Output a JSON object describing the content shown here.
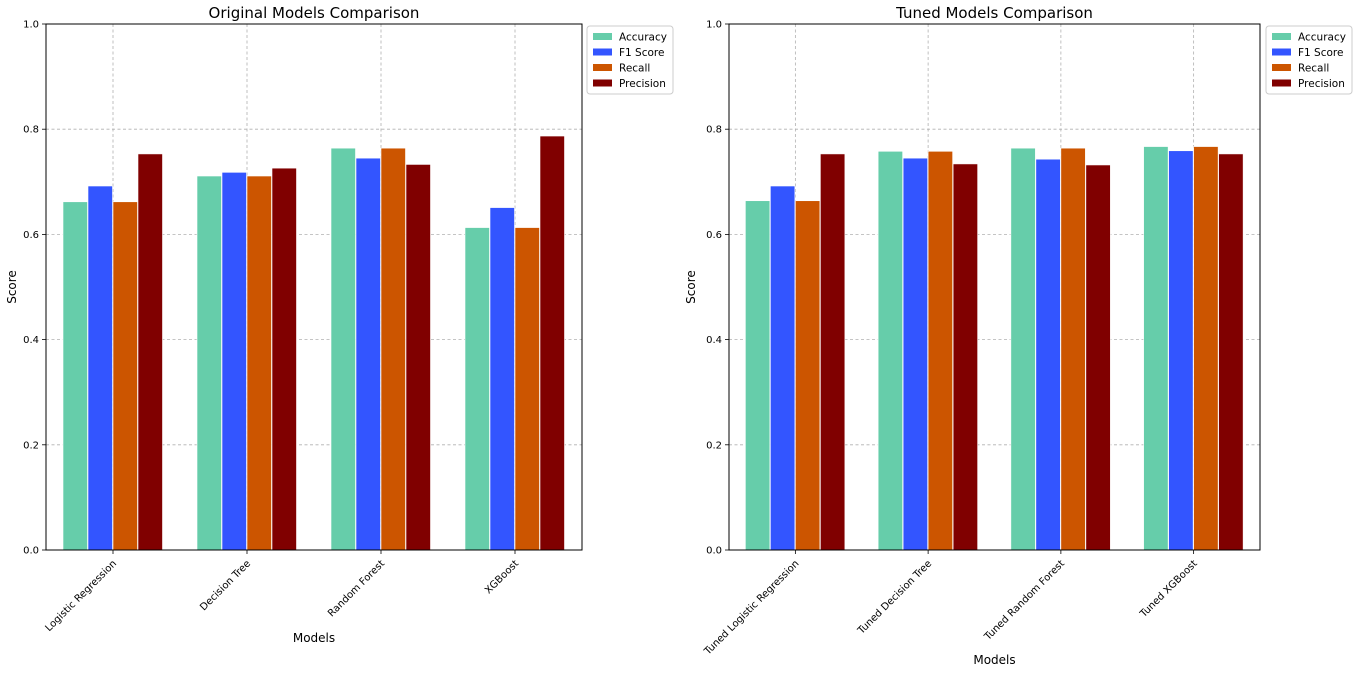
{
  "chart_data": [
    {
      "type": "bar",
      "title": "Original Models Comparison",
      "xlabel": "Models",
      "ylabel": "Score",
      "ylim": [
        0,
        1
      ],
      "yticks": [
        "0.0",
        "0.2",
        "0.4",
        "0.6",
        "0.8",
        "1.0"
      ],
      "grid": true,
      "legend_position": "outside-top-right",
      "categories": [
        "Logistic Regression",
        "Decision Tree",
        "Random Forest",
        "XGBoost"
      ],
      "series": [
        {
          "name": "Accuracy",
          "color": "#66cdaa",
          "values": [
            0.662,
            0.711,
            0.764,
            0.613
          ]
        },
        {
          "name": "F1 Score",
          "color": "#3355ff",
          "values": [
            0.692,
            0.718,
            0.745,
            0.651
          ]
        },
        {
          "name": "Recall",
          "color": "#cc5500",
          "values": [
            0.662,
            0.711,
            0.764,
            0.613
          ]
        },
        {
          "name": "Precision",
          "color": "#800000",
          "values": [
            0.753,
            0.726,
            0.733,
            0.787
          ]
        }
      ]
    },
    {
      "type": "bar",
      "title": "Tuned Models Comparison",
      "xlabel": "Models",
      "ylabel": "Score",
      "ylim": [
        0,
        1
      ],
      "yticks": [
        "0.0",
        "0.2",
        "0.4",
        "0.6",
        "0.8",
        "1.0"
      ],
      "grid": true,
      "legend_position": "outside-top-right",
      "categories": [
        "Tuned Logistic Regression",
        "Tuned Decision Tree",
        "Tuned Random Forest",
        "Tuned XGBoost"
      ],
      "series": [
        {
          "name": "Accuracy",
          "color": "#66cdaa",
          "values": [
            0.664,
            0.758,
            0.764,
            0.767
          ]
        },
        {
          "name": "F1 Score",
          "color": "#3355ff",
          "values": [
            0.692,
            0.745,
            0.743,
            0.759
          ]
        },
        {
          "name": "Recall",
          "color": "#cc5500",
          "values": [
            0.664,
            0.758,
            0.764,
            0.767
          ]
        },
        {
          "name": "Precision",
          "color": "#800000",
          "values": [
            0.753,
            0.734,
            0.732,
            0.753
          ]
        }
      ]
    }
  ]
}
